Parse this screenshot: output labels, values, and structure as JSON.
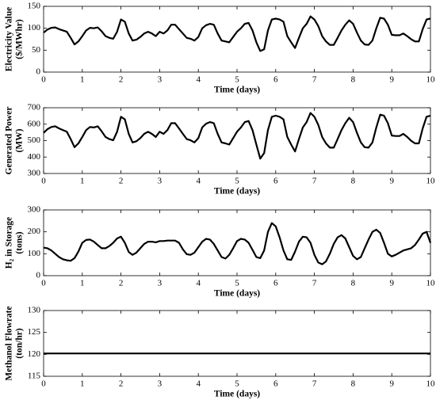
{
  "chart_data": [
    {
      "type": "line",
      "ylabel": [
        "Electricity Value",
        "($/MWhr)"
      ],
      "xlabel": "Time (days)",
      "color": "#000000",
      "xlim": [
        0,
        10
      ],
      "xticks": [
        0,
        1,
        2,
        3,
        4,
        5,
        6,
        7,
        8,
        9,
        10
      ],
      "ylim": [
        0,
        150
      ],
      "yticks": [
        0,
        50,
        100,
        150
      ],
      "x": [
        0,
        0.1,
        0.2,
        0.3,
        0.4,
        0.5,
        0.6,
        0.7,
        0.8,
        0.9,
        1,
        1.1,
        1.2,
        1.3,
        1.4,
        1.5,
        1.6,
        1.7,
        1.8,
        1.9,
        2,
        2.1,
        2.2,
        2.3,
        2.4,
        2.5,
        2.6,
        2.7,
        2.8,
        2.9,
        3,
        3.1,
        3.2,
        3.3,
        3.4,
        3.5,
        3.6,
        3.7,
        3.8,
        3.9,
        4,
        4.1,
        4.2,
        4.3,
        4.4,
        4.5,
        4.6,
        4.7,
        4.8,
        4.9,
        5,
        5.1,
        5.2,
        5.3,
        5.4,
        5.5,
        5.6,
        5.7,
        5.8,
        5.9,
        6,
        6.1,
        6.2,
        6.3,
        6.4,
        6.5,
        6.6,
        6.7,
        6.8,
        6.9,
        7,
        7.1,
        7.2,
        7.3,
        7.4,
        7.5,
        7.6,
        7.7,
        7.8,
        7.9,
        8,
        8.1,
        8.2,
        8.3,
        8.4,
        8.5,
        8.6,
        8.7,
        8.8,
        8.9,
        9,
        9.1,
        9.2,
        9.3,
        9.4,
        9.5,
        9.6,
        9.7,
        9.8,
        9.9,
        10
      ],
      "values": [
        90,
        97,
        101,
        102,
        98,
        95,
        92,
        78,
        63,
        70,
        82,
        95,
        101,
        100,
        102,
        93,
        82,
        78,
        76,
        92,
        120,
        115,
        88,
        72,
        74,
        80,
        88,
        92,
        88,
        82,
        92,
        88,
        95,
        108,
        108,
        98,
        88,
        78,
        76,
        72,
        80,
        100,
        107,
        110,
        108,
        88,
        72,
        70,
        68,
        80,
        92,
        100,
        110,
        112,
        95,
        68,
        48,
        52,
        95,
        120,
        122,
        120,
        115,
        82,
        68,
        55,
        78,
        100,
        110,
        127,
        120,
        105,
        82,
        70,
        62,
        62,
        78,
        95,
        108,
        118,
        110,
        90,
        72,
        63,
        62,
        72,
        100,
        124,
        122,
        108,
        85,
        84,
        84,
        88,
        82,
        75,
        70,
        70,
        98,
        120,
        122
      ]
    },
    {
      "type": "line",
      "ylabel": [
        "Generated Power",
        "(MW)"
      ],
      "xlabel": "Time (days)",
      "color": "#000000",
      "xlim": [
        0,
        10
      ],
      "xticks": [
        0,
        1,
        2,
        3,
        4,
        5,
        6,
        7,
        8,
        9,
        10
      ],
      "ylim": [
        300,
        700
      ],
      "yticks": [
        300,
        400,
        500,
        600,
        700
      ],
      "x": [
        0,
        0.1,
        0.2,
        0.3,
        0.4,
        0.5,
        0.6,
        0.7,
        0.8,
        0.9,
        1,
        1.1,
        1.2,
        1.3,
        1.4,
        1.5,
        1.6,
        1.7,
        1.8,
        1.9,
        2,
        2.1,
        2.2,
        2.3,
        2.4,
        2.5,
        2.6,
        2.7,
        2.8,
        2.9,
        3,
        3.1,
        3.2,
        3.3,
        3.4,
        3.5,
        3.6,
        3.7,
        3.8,
        3.9,
        4,
        4.1,
        4.2,
        4.3,
        4.4,
        4.5,
        4.6,
        4.7,
        4.8,
        4.9,
        5,
        5.1,
        5.2,
        5.3,
        5.4,
        5.5,
        5.6,
        5.7,
        5.8,
        5.9,
        6,
        6.1,
        6.2,
        6.3,
        6.4,
        6.5,
        6.6,
        6.7,
        6.8,
        6.9,
        7,
        7.1,
        7.2,
        7.3,
        7.4,
        7.5,
        7.6,
        7.7,
        7.8,
        7.9,
        8,
        8.1,
        8.2,
        8.3,
        8.4,
        8.5,
        8.6,
        8.7,
        8.8,
        8.9,
        9,
        9.1,
        9.2,
        9.3,
        9.4,
        9.5,
        9.6,
        9.7,
        9.8,
        9.9,
        10
      ],
      "values": [
        547,
        570,
        583,
        587,
        574,
        564,
        554,
        509,
        460,
        483,
        522,
        564,
        583,
        580,
        587,
        557,
        522,
        509,
        502,
        554,
        645,
        629,
        541,
        489,
        496,
        515,
        541,
        554,
        541,
        522,
        554,
        541,
        564,
        606,
        606,
        574,
        541,
        509,
        502,
        489,
        515,
        580,
        603,
        613,
        606,
        541,
        489,
        483,
        476,
        515,
        554,
        580,
        613,
        619,
        564,
        476,
        390,
        424,
        564,
        645,
        652,
        645,
        629,
        522,
        476,
        434,
        509,
        580,
        613,
        668,
        645,
        596,
        522,
        483,
        457,
        457,
        509,
        564,
        606,
        639,
        613,
        547,
        489,
        460,
        457,
        489,
        580,
        658,
        652,
        606,
        531,
        528,
        528,
        541,
        522,
        499,
        483,
        483,
        574,
        645,
        652
      ]
    },
    {
      "type": "line",
      "ylabel": [
        "H₂ in Storage",
        "(tons)"
      ],
      "xlabel": "Time (days)",
      "color": "#000000",
      "xlim": [
        0,
        10
      ],
      "xticks": [
        0,
        1,
        2,
        3,
        4,
        5,
        6,
        7,
        8,
        9,
        10
      ],
      "ylim": [
        0,
        300
      ],
      "yticks": [
        0,
        100,
        200,
        300
      ],
      "x": [
        0,
        0.1,
        0.2,
        0.3,
        0.4,
        0.5,
        0.6,
        0.7,
        0.8,
        0.9,
        1,
        1.1,
        1.2,
        1.3,
        1.4,
        1.5,
        1.6,
        1.7,
        1.8,
        1.9,
        2,
        2.1,
        2.2,
        2.3,
        2.4,
        2.5,
        2.6,
        2.7,
        2.8,
        2.9,
        3,
        3.1,
        3.2,
        3.3,
        3.4,
        3.5,
        3.6,
        3.7,
        3.8,
        3.9,
        4,
        4.1,
        4.2,
        4.3,
        4.4,
        4.5,
        4.6,
        4.7,
        4.8,
        4.9,
        5,
        5.1,
        5.2,
        5.3,
        5.4,
        5.5,
        5.6,
        5.7,
        5.8,
        5.9,
        6,
        6.1,
        6.2,
        6.3,
        6.4,
        6.5,
        6.6,
        6.7,
        6.8,
        6.9,
        7,
        7.1,
        7.2,
        7.3,
        7.4,
        7.5,
        7.6,
        7.7,
        7.8,
        7.9,
        8,
        8.1,
        8.2,
        8.3,
        8.4,
        8.5,
        8.6,
        8.7,
        8.8,
        8.9,
        9,
        9.1,
        9.2,
        9.3,
        9.4,
        9.5,
        9.6,
        9.7,
        9.8,
        9.9,
        10
      ],
      "values": [
        128,
        125,
        115,
        100,
        85,
        75,
        70,
        68,
        80,
        110,
        150,
        163,
        165,
        155,
        140,
        125,
        125,
        135,
        150,
        170,
        178,
        150,
        108,
        95,
        105,
        125,
        145,
        155,
        155,
        152,
        158,
        158,
        160,
        160,
        160,
        150,
        120,
        98,
        95,
        105,
        130,
        155,
        168,
        165,
        145,
        115,
        85,
        78,
        95,
        125,
        158,
        168,
        165,
        150,
        118,
        85,
        80,
        115,
        200,
        240,
        225,
        175,
        115,
        75,
        72,
        110,
        155,
        178,
        175,
        150,
        95,
        60,
        52,
        65,
        100,
        145,
        175,
        185,
        170,
        130,
        90,
        75,
        85,
        125,
        165,
        200,
        210,
        195,
        150,
        100,
        88,
        95,
        105,
        115,
        120,
        125,
        140,
        165,
        192,
        200,
        150
      ]
    },
    {
      "type": "line",
      "ylabel": [
        "Methanol Flowrate",
        "(ton/hr)"
      ],
      "xlabel": "Time (days)",
      "color": "#000000",
      "xlim": [
        0,
        10
      ],
      "xticks": [
        0,
        1,
        2,
        3,
        4,
        5,
        6,
        7,
        8,
        9,
        10
      ],
      "ylim": [
        115,
        130
      ],
      "yticks": [
        115,
        120,
        125,
        130
      ],
      "x": [
        0,
        10
      ],
      "values": [
        120.2,
        120.2
      ]
    }
  ]
}
